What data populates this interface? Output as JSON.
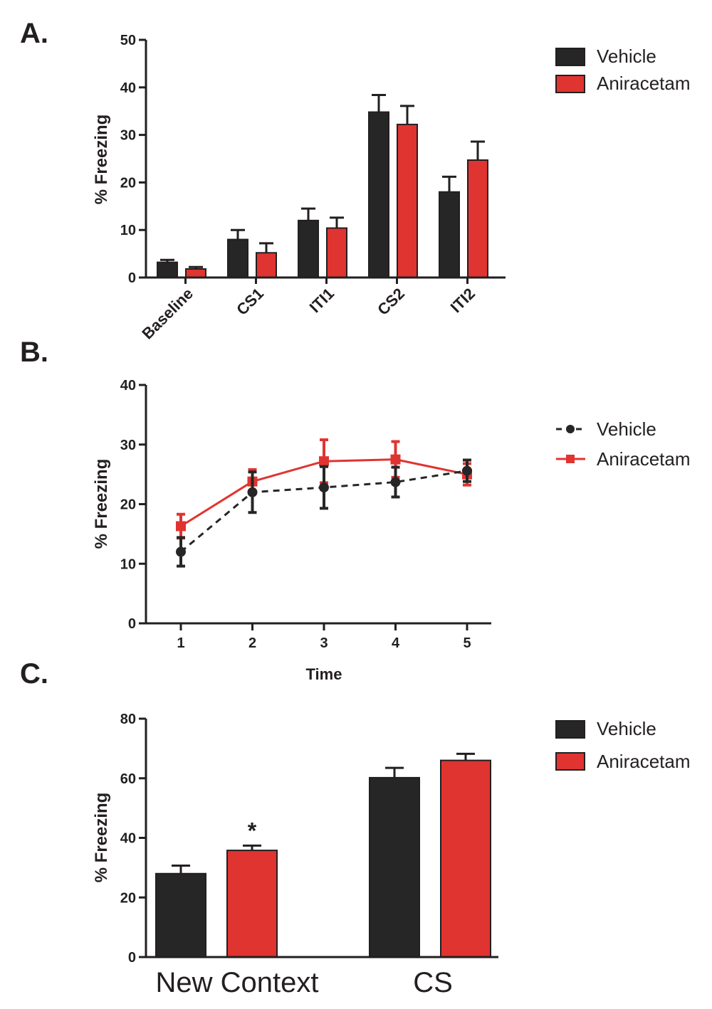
{
  "colors": {
    "vehicle": "#262626",
    "aniracetam": "#e03431",
    "axis": "#231f20"
  },
  "chart_data": [
    {
      "panel": "A.",
      "type": "bar",
      "title": "",
      "xlabel": "",
      "ylabel": "% Freezing",
      "ylim": [
        0,
        50
      ],
      "yticks": [
        0,
        10,
        20,
        30,
        40,
        50
      ],
      "categories": [
        "Baseline",
        "CS1",
        "ITI1",
        "CS2",
        "ITI2"
      ],
      "series": [
        {
          "name": "Vehicle",
          "values": [
            3.2,
            8.0,
            12.0,
            34.8,
            18.0
          ],
          "errors": [
            0.5,
            2.0,
            2.5,
            3.6,
            3.2
          ]
        },
        {
          "name": "Aniracetam",
          "values": [
            1.8,
            5.2,
            10.4,
            32.2,
            24.7
          ],
          "errors": [
            0.4,
            2.0,
            2.2,
            3.9,
            3.9
          ]
        }
      ],
      "legend": [
        "Vehicle",
        "Aniracetam"
      ],
      "legend_position": "top-right"
    },
    {
      "panel": "B.",
      "type": "line",
      "title": "",
      "xlabel": "Time",
      "ylabel": "% Freezing",
      "ylim": [
        0,
        40
      ],
      "yticks": [
        0,
        10,
        20,
        30,
        40
      ],
      "x": [
        1,
        2,
        3,
        4,
        5
      ],
      "series": [
        {
          "name": "Vehicle",
          "values": [
            12.0,
            22.0,
            22.8,
            23.7,
            25.6
          ],
          "errors": [
            2.4,
            3.4,
            3.5,
            2.5,
            1.8
          ],
          "style": "dashed",
          "marker": "circle"
        },
        {
          "name": "Aniracetam",
          "values": [
            16.3,
            23.8,
            27.2,
            27.5,
            25.0
          ],
          "errors": [
            2.0,
            2.0,
            3.6,
            3.0,
            1.8
          ],
          "style": "solid",
          "marker": "square"
        }
      ],
      "legend": [
        "Vehicle",
        "Aniracetam"
      ],
      "legend_position": "right"
    },
    {
      "panel": "C.",
      "type": "bar",
      "title": "",
      "xlabel": "",
      "ylabel": "% Freezing",
      "ylim": [
        0,
        80
      ],
      "yticks": [
        0,
        20,
        40,
        60,
        80
      ],
      "categories": [
        "New Context",
        "CS"
      ],
      "series": [
        {
          "name": "Vehicle",
          "values": [
            28.0,
            60.2
          ],
          "errors": [
            2.7,
            3.3
          ]
        },
        {
          "name": "Aniracetam",
          "values": [
            35.8,
            66.0
          ],
          "errors": [
            1.6,
            2.2
          ]
        }
      ],
      "annotations": [
        {
          "text": "*",
          "category": "New Context",
          "series": "Aniracetam"
        }
      ],
      "legend": [
        "Vehicle",
        "Aniracetam"
      ],
      "legend_position": "top-right"
    }
  ]
}
